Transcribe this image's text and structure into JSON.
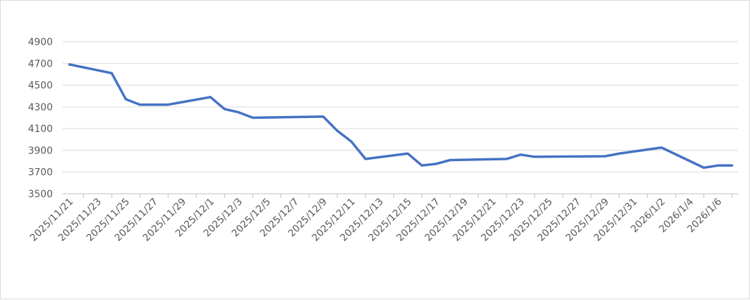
{
  "chart_data": {
    "type": "line",
    "title": "",
    "xlabel": "",
    "ylabel": "",
    "ylim": [
      3500,
      4900
    ],
    "yticks": [
      3500,
      3700,
      3900,
      4100,
      4300,
      4500,
      4700,
      4900
    ],
    "grid": true,
    "legend": "none",
    "line_color": "#4472c4",
    "x_tick_labels": [
      "2025/11/21",
      "2025/11/23",
      "2025/11/25",
      "2025/11/27",
      "2025/11/29",
      "2025/12/1",
      "2025/12/3",
      "2025/12/5",
      "2025/12/7",
      "2025/12/9",
      "2025/12/11",
      "2025/12/13",
      "2025/12/15",
      "2025/12/17",
      "2025/12/19",
      "2025/12/21",
      "2025/12/23",
      "2025/12/25",
      "2025/12/27",
      "2025/12/29",
      "2025/12/31",
      "2026/1/2",
      "2026/1/4",
      "2026/1/6"
    ],
    "series": [
      {
        "points": [
          {
            "x": "2025/11/21",
            "y": 4690
          },
          {
            "x": "2025/11/24",
            "y": 4610
          },
          {
            "x": "2025/11/25",
            "y": 4370
          },
          {
            "x": "2025/11/26",
            "y": 4320
          },
          {
            "x": "2025/11/28",
            "y": 4320
          },
          {
            "x": "2025/12/1",
            "y": 4390
          },
          {
            "x": "2025/12/2",
            "y": 4280
          },
          {
            "x": "2025/12/3",
            "y": 4250
          },
          {
            "x": "2025/12/4",
            "y": 4200
          },
          {
            "x": "2025/12/9",
            "y": 4210
          },
          {
            "x": "2025/12/10",
            "y": 4080
          },
          {
            "x": "2025/12/11",
            "y": 3980
          },
          {
            "x": "2025/12/12",
            "y": 3820
          },
          {
            "x": "2025/12/15",
            "y": 3870
          },
          {
            "x": "2025/12/16",
            "y": 3760
          },
          {
            "x": "2025/12/17",
            "y": 3775
          },
          {
            "x": "2025/12/18",
            "y": 3810
          },
          {
            "x": "2025/12/22",
            "y": 3820
          },
          {
            "x": "2025/12/23",
            "y": 3860
          },
          {
            "x": "2025/12/24",
            "y": 3840
          },
          {
            "x": "2025/12/29",
            "y": 3845
          },
          {
            "x": "2025/12/30",
            "y": 3870
          },
          {
            "x": "2026/1/2",
            "y": 3925
          },
          {
            "x": "2026/1/5",
            "y": 3740
          },
          {
            "x": "2026/1/6",
            "y": 3760
          },
          {
            "x": "2026/1/7",
            "y": 3760
          }
        ]
      }
    ]
  }
}
